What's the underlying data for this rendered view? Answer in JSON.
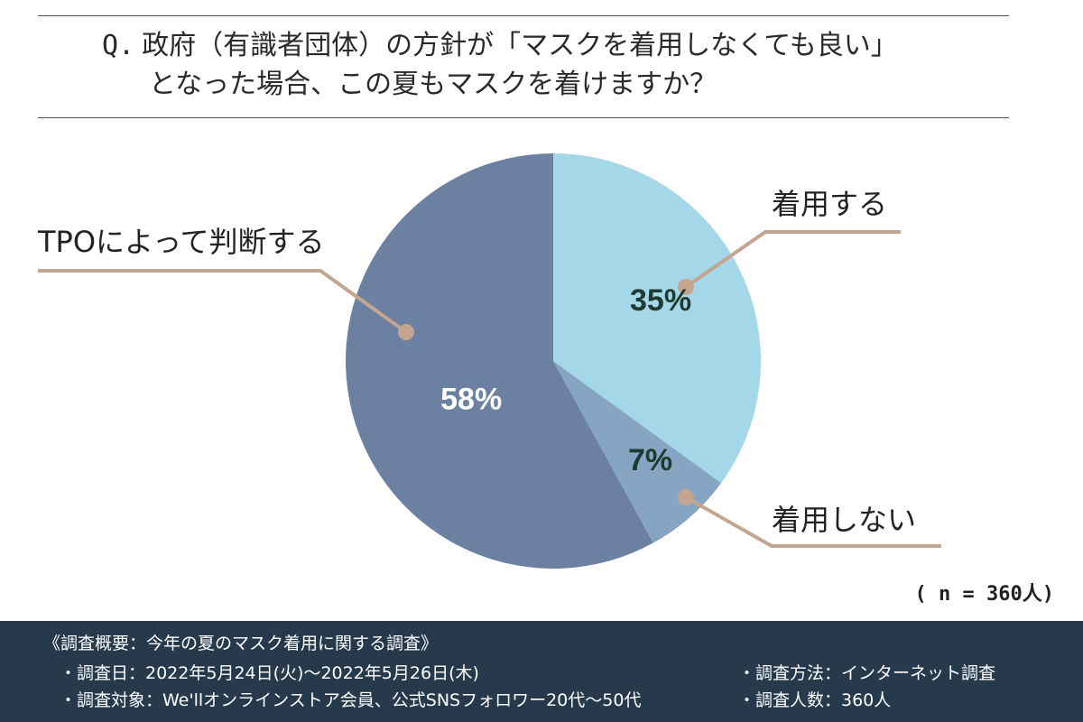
{
  "question": {
    "prefix": "Q.",
    "line1": "政府（有識者団体）の方針が「マスクを着用しなくても良い」",
    "line2": "となった場合、この夏もマスクを着けますか？"
  },
  "chart_data": {
    "type": "pie",
    "title": "政府（有識者団体）の方針が「マスクを着用しなくても良い」となった場合、この夏もマスクを着けますか？",
    "start": "12 o'clock, clockwise",
    "slices": [
      {
        "label": "着用する",
        "value": 35,
        "display": "35%",
        "color": "#a4d7e8",
        "text_color": "#1f3a33"
      },
      {
        "label": "着用しない",
        "value": 7,
        "display": "7%",
        "color": "#86a5c3",
        "text_color": "#1f3a33"
      },
      {
        "label": "TPOによって判断する",
        "value": 58,
        "display": "58%",
        "color": "#6c80a1",
        "text_color": "#ffffff"
      }
    ],
    "leader_color": "#c4a58f",
    "sample_size": "( n = 360人)"
  },
  "footer": {
    "title": "《調査概要：今年の夏のマスク着用に関する調査》",
    "date": "・調査日：2022年5月24日(火)〜2022年5月26日(木)",
    "target": "・調査対象：We'llオンラインストア会員、公式SNSフォロワー20代〜50代",
    "method": "・調査方法：インターネット調査",
    "count": "・調査人数：360人",
    "bg_color": "#263a4c"
  }
}
